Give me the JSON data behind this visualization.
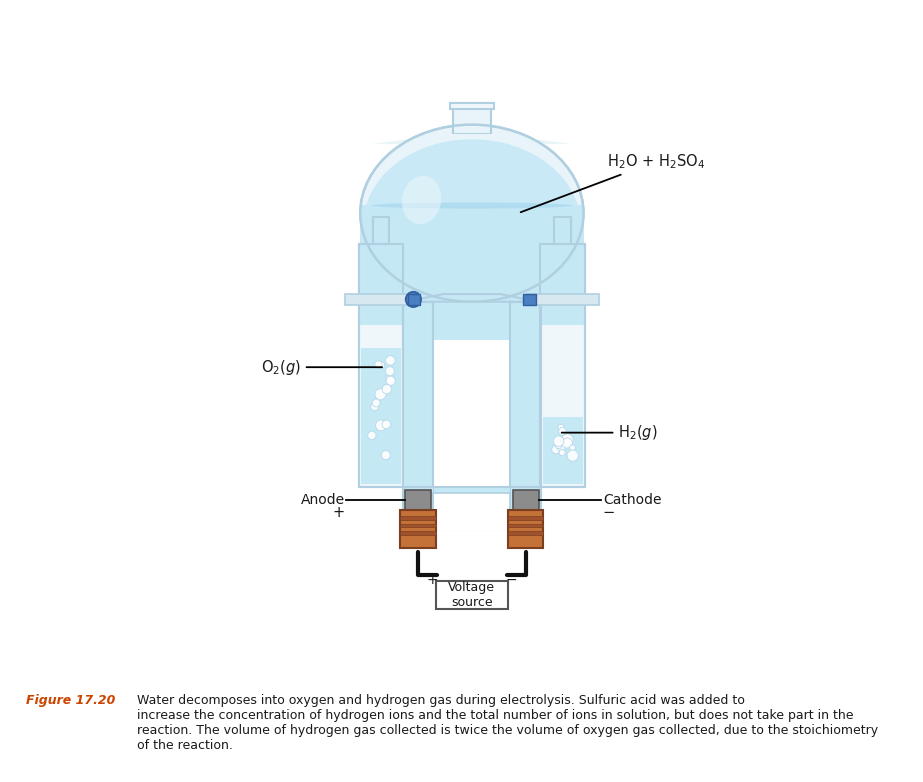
{
  "fig_width": 9.23,
  "fig_height": 7.82,
  "dpi": 100,
  "bg_color": "#ffffff",
  "liquid_blue": "#c5e8f5",
  "liquid_blue2": "#a8d8ef",
  "glass_fill": "#daedf7",
  "glass_fill2": "#e8f4fa",
  "glass_edge": "#b0cfe0",
  "glass_dark": "#9ab8cc",
  "flask_top_fill": "#d4eaf5",
  "electrode_fill": "#8c8c8c",
  "electrode_dark": "#555555",
  "copper_fill": "#a0522d",
  "copper_light": "#c47238",
  "copper_dark": "#7a3e20",
  "wire_color": "#111111",
  "blue_valve": "#4a7fc1",
  "blue_valve2": "#3060a0",
  "white_glass": "#f0f7fb",
  "caption_orange": "#cc4400",
  "text_black": "#1a1a1a",
  "label_h2o": "H$_2$O + H$_2$SO$_4$",
  "label_o2": "O$_2$($g$)",
  "label_h2": "H$_2$($g$)",
  "label_anode": "Anode",
  "label_anode_sign": "+",
  "label_cathode": "Cathode",
  "label_cathode_sign": "−",
  "label_voltage": "Voltage\nsource",
  "label_plus": "+",
  "label_minus": "−"
}
